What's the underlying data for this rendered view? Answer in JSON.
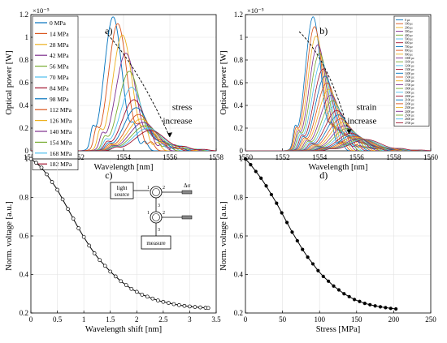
{
  "chart_data": [
    {
      "panel": "a)",
      "type": "line",
      "xlabel": "Wavelength [nm]",
      "ylabel": "Optical power [W]",
      "y_exponent": "×10⁻⁵",
      "xlim": [
        1550,
        1558
      ],
      "ylim": [
        0,
        1.2
      ],
      "xticks": [
        1550,
        1552,
        1554,
        1556,
        1558
      ],
      "yticks": [
        0,
        0.2,
        0.4,
        0.6,
        0.8,
        1.0,
        1.2
      ],
      "legend_position": "top-left",
      "annotation": [
        "stress",
        "increase"
      ],
      "series": [
        {
          "name": "0 MPa",
          "color": "#0072bd",
          "peak_x": 1553.55,
          "peak_y": 1.18
        },
        {
          "name": "14 MPa",
          "color": "#d95319",
          "peak_x": 1553.75,
          "peak_y": 1.12
        },
        {
          "name": "28 MPa",
          "color": "#edb120",
          "peak_x": 1553.95,
          "peak_y": 1.02
        },
        {
          "name": "42 MPa",
          "color": "#7e2f8e",
          "peak_x": 1554.1,
          "peak_y": 0.86
        },
        {
          "name": "56 MPa",
          "color": "#77ac30",
          "peak_x": 1554.25,
          "peak_y": 0.7
        },
        {
          "name": "70 MPa",
          "color": "#4dbeee",
          "peak_x": 1554.35,
          "peak_y": 0.56
        },
        {
          "name": "84 MPa",
          "color": "#a2142f",
          "peak_x": 1554.45,
          "peak_y": 0.45
        },
        {
          "name": "98 MPa",
          "color": "#0072bd",
          "peak_x": 1554.55,
          "peak_y": 0.38
        },
        {
          "name": "112 MPa",
          "color": "#d95319",
          "peak_x": 1554.65,
          "peak_y": 0.32
        },
        {
          "name": "126 MPa",
          "color": "#edb120",
          "peak_x": 1554.75,
          "peak_y": 0.28
        },
        {
          "name": "140 MPa",
          "color": "#7e2f8e",
          "peak_x": 1554.85,
          "peak_y": 0.25
        },
        {
          "name": "154 MPa",
          "color": "#77ac30",
          "peak_x": 1554.95,
          "peak_y": 0.22
        },
        {
          "name": "168 MPa",
          "color": "#4dbeee",
          "peak_x": 1555.05,
          "peak_y": 0.2
        },
        {
          "name": "182 MPa",
          "color": "#a2142f",
          "peak_x": 1555.15,
          "peak_y": 0.18
        }
      ]
    },
    {
      "panel": "b)",
      "type": "line",
      "xlabel": "Wavelength [nm]",
      "ylabel": "Optical power [W]",
      "y_exponent": "×10⁻⁵",
      "xlim": [
        1550,
        1560
      ],
      "ylim": [
        0,
        1.2
      ],
      "xticks": [
        1550,
        1552,
        1554,
        1556,
        1558,
        1560
      ],
      "yticks": [
        0,
        0.2,
        0.4,
        0.6,
        0.8,
        1.0,
        1.2
      ],
      "legend_position": "top-right",
      "annotation": [
        "strain",
        "increase"
      ],
      "series_names": [
        "0 µε",
        "100 µε",
        "200 µε",
        "300 µε",
        "400 µε",
        "500 µε",
        "600 µε",
        "700 µε",
        "800 µε",
        "900 µε",
        "1000 µε",
        "1100 µε",
        "1200 µε",
        "1300 µε",
        "1400 µε",
        "1500 µε",
        "1600 µε",
        "1700 µε",
        "1800 µε",
        "1900 µε",
        "2000 µε",
        "2100 µε",
        "2200 µε",
        "2300 µε",
        "2400 µε",
        "2500 µε",
        "2600 µε",
        "2700 µε"
      ],
      "peak_start": {
        "x": 1553.65,
        "y": 1.18
      },
      "peak_end": {
        "x": 1556.5,
        "y": 0.1
      }
    },
    {
      "panel": "c)",
      "type": "line",
      "xlabel": "Wavelength shift [nm]",
      "ylabel": "Norm. voltage [a.u.]",
      "xlim": [
        0,
        3.5
      ],
      "ylim": [
        0.2,
        1.0
      ],
      "xticks": [
        0,
        0.5,
        1,
        1.5,
        2,
        2.5,
        3,
        3.5
      ],
      "yticks": [
        0.2,
        0.4,
        0.6,
        0.8,
        1.0
      ],
      "x": [
        0,
        0.1,
        0.2,
        0.3,
        0.4,
        0.5,
        0.6,
        0.7,
        0.8,
        0.9,
        1.0,
        1.1,
        1.2,
        1.3,
        1.4,
        1.5,
        1.6,
        1.7,
        1.8,
        1.9,
        2.0,
        2.1,
        2.2,
        2.3,
        2.4,
        2.5,
        2.6,
        2.7,
        2.8,
        2.9,
        3.0,
        3.1,
        3.2,
        3.3,
        3.35
      ],
      "y": [
        1.0,
        0.98,
        0.955,
        0.92,
        0.88,
        0.84,
        0.79,
        0.74,
        0.69,
        0.64,
        0.595,
        0.55,
        0.51,
        0.475,
        0.445,
        0.415,
        0.39,
        0.365,
        0.345,
        0.325,
        0.31,
        0.295,
        0.285,
        0.275,
        0.265,
        0.258,
        0.252,
        0.246,
        0.241,
        0.237,
        0.234,
        0.231,
        0.229,
        0.227,
        0.226
      ],
      "inset": {
        "source_label": "light source",
        "measure_label": "measure",
        "port_1": "1",
        "port_2": "2",
        "port_3": "3",
        "delta_label": "Δσ"
      }
    },
    {
      "panel": "d)",
      "type": "line",
      "xlabel": "Stress [MPa]",
      "ylabel": "Norm. voltage [a.u.]",
      "xlim": [
        0,
        250
      ],
      "ylim": [
        0.2,
        1.0
      ],
      "xticks": [
        0,
        50,
        100,
        150,
        200,
        250
      ],
      "yticks": [
        0.2,
        0.4,
        0.6,
        0.8,
        1.0
      ],
      "x": [
        0,
        7,
        14,
        21,
        28,
        35,
        42,
        49,
        56,
        63,
        70,
        77,
        84,
        91,
        98,
        105,
        112,
        119,
        126,
        133,
        140,
        147,
        154,
        161,
        168,
        175,
        182,
        189,
        196,
        203
      ],
      "y": [
        1.0,
        0.97,
        0.935,
        0.9,
        0.86,
        0.815,
        0.77,
        0.72,
        0.67,
        0.62,
        0.575,
        0.53,
        0.49,
        0.455,
        0.42,
        0.39,
        0.365,
        0.34,
        0.32,
        0.3,
        0.285,
        0.27,
        0.26,
        0.25,
        0.243,
        0.237,
        0.232,
        0.228,
        0.224,
        0.221
      ]
    }
  ]
}
